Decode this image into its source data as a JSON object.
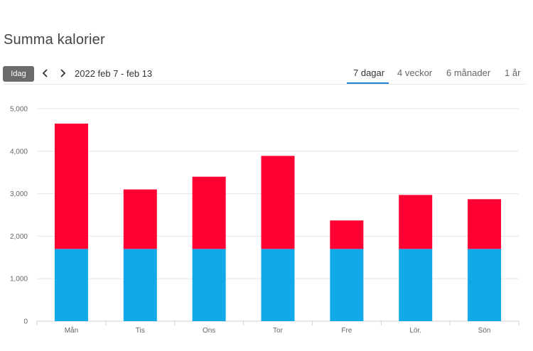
{
  "page": {
    "title": "Summa kalorier"
  },
  "toolbar": {
    "today_label": "Idag",
    "date_range": "2022 feb 7 - feb 13",
    "tabs": [
      {
        "label": "7 dagar",
        "active": true
      },
      {
        "label": "4 veckor",
        "active": false
      },
      {
        "label": "6 månader",
        "active": false
      },
      {
        "label": "1 år",
        "active": false
      }
    ]
  },
  "colors": {
    "accent": "#1f7fd6",
    "series_base": "#12a9e8",
    "series_extra": "#ff0033",
    "today_button": "#6b6b6b"
  },
  "icons": {
    "prev": "chevron-left-icon",
    "next": "chevron-right-icon"
  },
  "chart_data": {
    "type": "bar",
    "stacked": true,
    "categories": [
      "Mån",
      "Tis",
      "Ons",
      "Tor",
      "Fre",
      "Lör.",
      "Sön"
    ],
    "series": [
      {
        "values": [
          1700,
          1700,
          1700,
          1700,
          1700,
          1700,
          1700
        ],
        "color": "#12a9e8"
      },
      {
        "values": [
          2950,
          1400,
          1700,
          2190,
          670,
          1270,
          1170
        ],
        "color": "#ff0033"
      }
    ],
    "ylim": [
      0,
      5000
    ],
    "yticks": [
      0,
      1000,
      2000,
      3000,
      4000,
      5000
    ],
    "ytick_labels": [
      "0",
      "1,000",
      "2,000",
      "3,000",
      "4,000",
      "5,000"
    ],
    "grid": true,
    "legend": "none"
  }
}
